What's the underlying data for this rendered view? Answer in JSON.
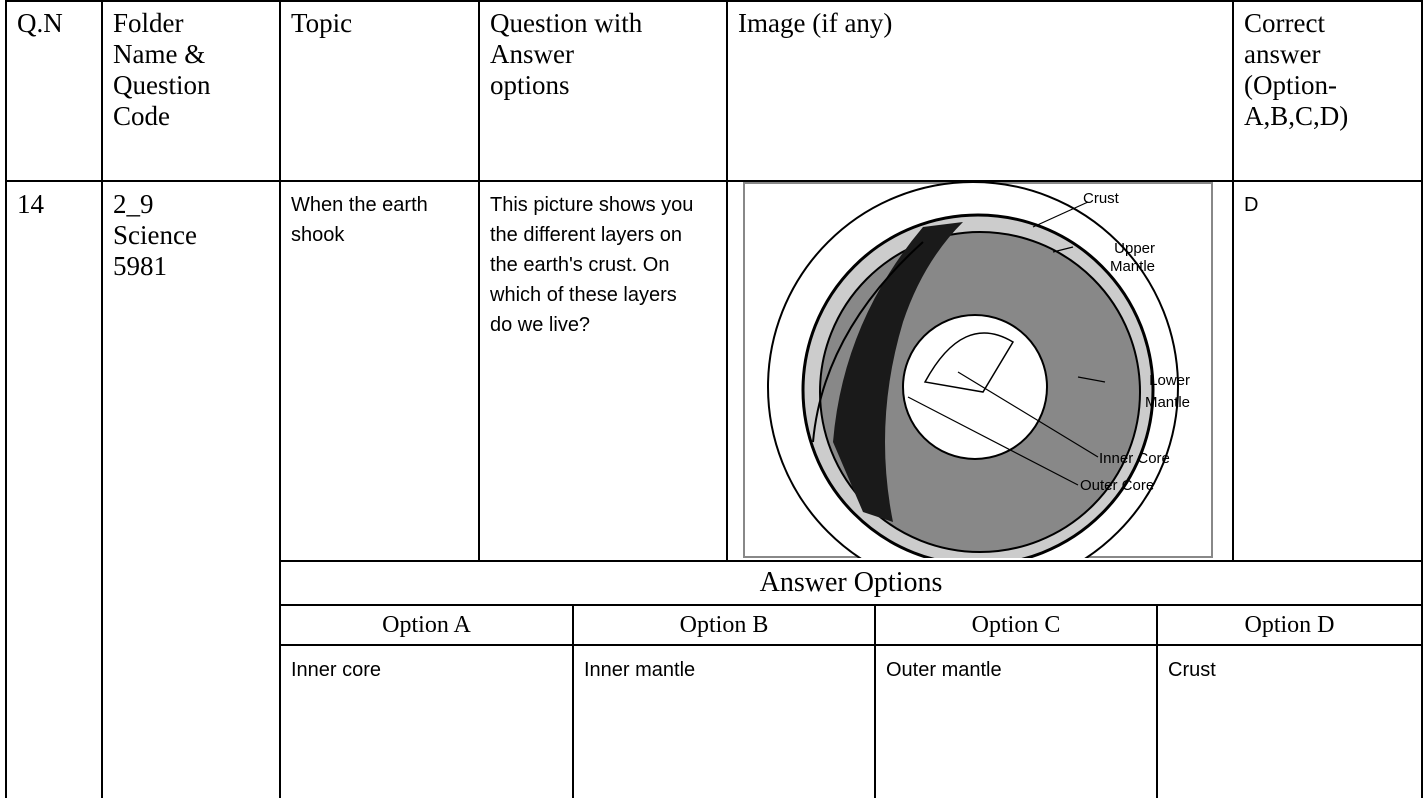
{
  "header": {
    "columns": [
      "Q.N",
      "Folder Name & Question Code",
      "Topic",
      "Question with Answer options",
      "Image (if any)",
      "Correct answer (Option-A,B,C,D)"
    ]
  },
  "row": {
    "qn": "14",
    "folder_code": [
      "2_9",
      "Science",
      "5981"
    ],
    "topic": "When the earth shook",
    "question": "This picture shows you the different layers on the earth's crust. On which of these layers do we live?",
    "image_labels": [
      "Crust",
      "Upper Mantle",
      "Lower Mantle",
      "Inner Core",
      "Outer Core"
    ],
    "correct_answer": "D"
  },
  "answer_options": {
    "title": "Answer  Options",
    "headers": [
      "Option A",
      "Option B",
      "Option C",
      "Option D"
    ],
    "values": [
      "Inner core",
      "Inner mantle",
      "Outer mantle",
      "Crust"
    ]
  }
}
